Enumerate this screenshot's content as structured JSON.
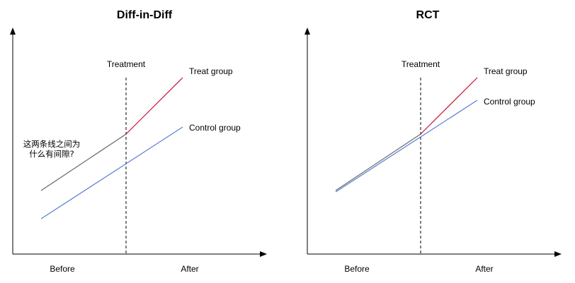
{
  "colors": {
    "axis": "#000000",
    "pre_treatment_line": "#666666",
    "treat_post_line": "#c8102e",
    "control_line": "#5b7bd5"
  },
  "diagrams": [
    {
      "id": "did",
      "title": "Diff-in-Diff",
      "treatment_label": "Treatment",
      "x_before": "Before",
      "x_after": "After",
      "treat_label": "Treat group",
      "control_label": "Control group",
      "question_line1": "这两条线之间为",
      "question_line2": "什么有间隙?"
    },
    {
      "id": "rct",
      "title": "RCT",
      "treatment_label": "Treatment",
      "x_before": "Before",
      "x_after": "After",
      "treat_label": "Treat group",
      "control_label": "Control group"
    }
  ]
}
